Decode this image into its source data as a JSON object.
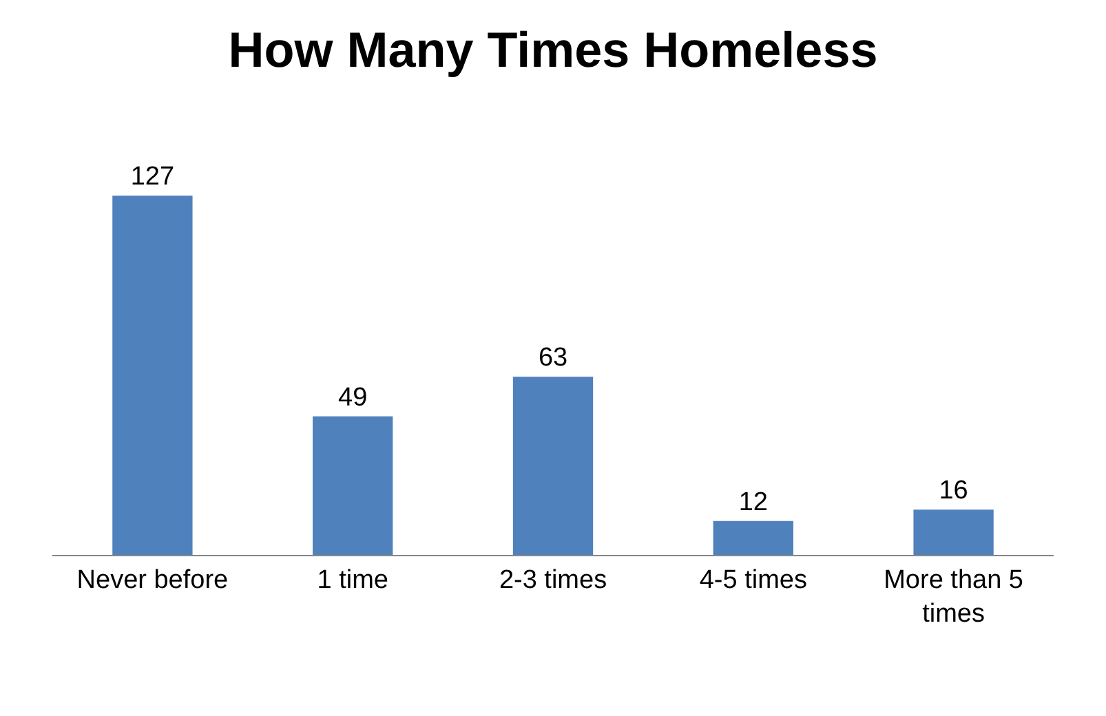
{
  "chart_data": {
    "type": "bar",
    "title": "How Many Times Homeless",
    "categories": [
      "Never before",
      "1 time",
      "2-3 times",
      "4-5 times",
      "More than 5 times"
    ],
    "values": [
      127,
      49,
      63,
      12,
      16
    ],
    "color": "#4f81bd",
    "data_labels": true
  }
}
